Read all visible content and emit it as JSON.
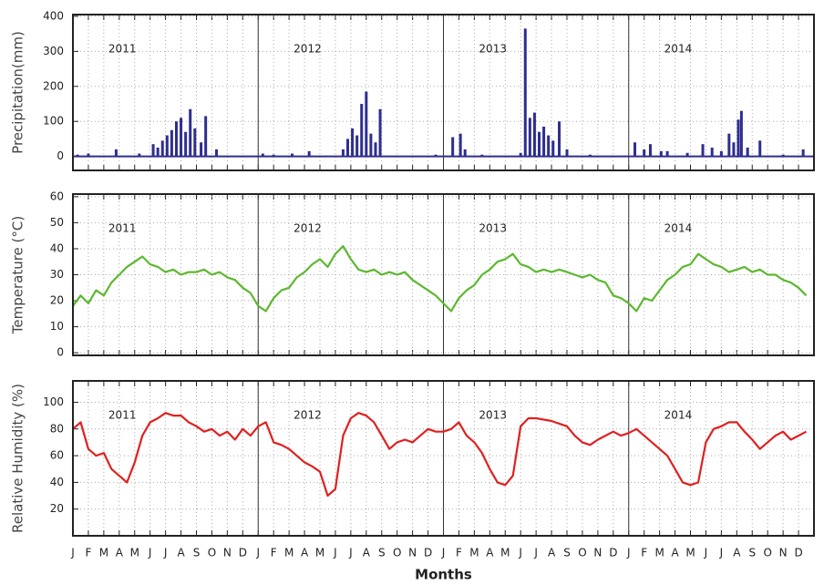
{
  "chart_data": [
    {
      "type": "bar",
      "ylabel": "Precipitation(mm)",
      "color": "#2e2e8f",
      "grid": true,
      "xlim": [
        0,
        48
      ],
      "ylim": [
        -40,
        405
      ],
      "yticks": [
        0,
        100,
        200,
        300,
        400
      ],
      "annotations": [
        "2011",
        "2012",
        "2013",
        "2014"
      ],
      "x": [
        0.3,
        1,
        2.8,
        4.3,
        5.2,
        5.5,
        5.8,
        6.1,
        6.4,
        6.7,
        7,
        7.3,
        7.6,
        7.9,
        8.3,
        8.6,
        9.3,
        12.3,
        13,
        14.2,
        15.3,
        17.5,
        17.8,
        18.1,
        18.4,
        18.7,
        19,
        19.3,
        19.6,
        19.9,
        23.5,
        24.6,
        25.1,
        25.4,
        26.5,
        29,
        29.3,
        29.6,
        29.9,
        30.2,
        30.5,
        30.8,
        31.1,
        31.5,
        32,
        33.5,
        36.4,
        37,
        37.4,
        38.1,
        38.5,
        39.8,
        40.8,
        41.4,
        42,
        42.5,
        42.8,
        43.1,
        43.3,
        43.7,
        44.5,
        46,
        47.3
      ],
      "values": [
        5,
        8,
        20,
        8,
        35,
        25,
        45,
        60,
        75,
        100,
        110,
        70,
        135,
        80,
        40,
        115,
        20,
        8,
        5,
        8,
        15,
        20,
        50,
        80,
        60,
        150,
        185,
        65,
        40,
        135,
        5,
        55,
        65,
        20,
        5,
        10,
        365,
        110,
        125,
        70,
        85,
        60,
        45,
        100,
        20,
        5,
        40,
        20,
        35,
        15,
        15,
        10,
        35,
        25,
        15,
        65,
        40,
        105,
        130,
        25,
        45,
        5,
        20
      ]
    },
    {
      "type": "line",
      "ylabel": "Temperature (°C)",
      "color": "#5db82f",
      "grid": true,
      "xlim": [
        0,
        48
      ],
      "ylim": [
        -1,
        61
      ],
      "yticks": [
        0,
        10,
        20,
        30,
        40,
        50,
        60
      ],
      "annotations": [
        "2011",
        "2012",
        "2013",
        "2014"
      ],
      "x": [
        0,
        0.5,
        1,
        1.5,
        2,
        2.5,
        3,
        3.5,
        4,
        4.5,
        5,
        5.5,
        6,
        6.5,
        7,
        7.5,
        8,
        8.5,
        9,
        9.5,
        10,
        10.5,
        11,
        11.5,
        12,
        12.5,
        13,
        13.5,
        14,
        14.5,
        15,
        15.5,
        16,
        16.5,
        17,
        17.5,
        18,
        18.5,
        19,
        19.5,
        20,
        20.5,
        21,
        21.5,
        22,
        22.5,
        23,
        23.5,
        24,
        24.5,
        25,
        25.5,
        26,
        26.5,
        27,
        27.5,
        28,
        28.5,
        29,
        29.5,
        30,
        30.5,
        31,
        31.5,
        32,
        32.5,
        33,
        33.5,
        34,
        34.5,
        35,
        35.5,
        36,
        36.5,
        37,
        37.5,
        38,
        38.5,
        39,
        39.5,
        40,
        40.5,
        41,
        41.5,
        42,
        42.5,
        43,
        43.5,
        44,
        44.5,
        45,
        45.5,
        46,
        46.5,
        47,
        47.5
      ],
      "values": [
        18,
        22,
        19,
        24,
        22,
        27,
        30,
        33,
        35,
        37,
        34,
        33,
        31,
        32,
        30,
        31,
        31,
        32,
        30,
        31,
        29,
        28,
        25,
        23,
        18,
        16,
        21,
        24,
        25,
        29,
        31,
        34,
        36,
        33,
        38,
        41,
        36,
        32,
        31,
        32,
        30,
        31,
        30,
        31,
        28,
        26,
        24,
        22,
        19,
        16,
        21,
        24,
        26,
        30,
        32,
        35,
        36,
        38,
        34,
        33,
        31,
        32,
        31,
        32,
        31,
        30,
        29,
        30,
        28,
        27,
        22,
        21,
        19,
        16,
        21,
        20,
        24,
        28,
        30,
        33,
        34,
        38,
        36,
        34,
        33,
        31,
        32,
        33,
        31,
        32,
        30,
        30,
        28,
        27,
        25,
        22
      ]
    },
    {
      "type": "line",
      "ylabel": "Relative Humidity (%)",
      "xlabel": "Months",
      "color": "#e02020",
      "grid": true,
      "xlim": [
        0,
        48
      ],
      "ylim": [
        0,
        116
      ],
      "yticks": [
        20,
        40,
        60,
        80,
        100
      ],
      "annotations": [
        "2011",
        "2012",
        "2013",
        "2014"
      ],
      "xticks": [
        {
          "value": 0,
          "label": "J"
        },
        {
          "value": 1,
          "label": "F"
        },
        {
          "value": 2,
          "label": "M"
        },
        {
          "value": 3,
          "label": "A"
        },
        {
          "value": 4,
          "label": "M"
        },
        {
          "value": 5,
          "label": "J"
        },
        {
          "value": 6,
          "label": "J"
        },
        {
          "value": 7,
          "label": "A"
        },
        {
          "value": 8,
          "label": "S"
        },
        {
          "value": 9,
          "label": "O"
        },
        {
          "value": 10,
          "label": "N"
        },
        {
          "value": 11,
          "label": "D"
        },
        {
          "value": 12,
          "label": "J"
        },
        {
          "value": 13,
          "label": "F"
        },
        {
          "value": 14,
          "label": "M"
        },
        {
          "value": 15,
          "label": "A"
        },
        {
          "value": 16,
          "label": "M"
        },
        {
          "value": 17,
          "label": "J"
        },
        {
          "value": 18,
          "label": "J"
        },
        {
          "value": 19,
          "label": "A"
        },
        {
          "value": 20,
          "label": "S"
        },
        {
          "value": 21,
          "label": "O"
        },
        {
          "value": 22,
          "label": "N"
        },
        {
          "value": 23,
          "label": "D"
        },
        {
          "value": 24,
          "label": "J"
        },
        {
          "value": 25,
          "label": "F"
        },
        {
          "value": 26,
          "label": "M"
        },
        {
          "value": 27,
          "label": "A"
        },
        {
          "value": 28,
          "label": "M"
        },
        {
          "value": 29,
          "label": "J"
        },
        {
          "value": 30,
          "label": "J"
        },
        {
          "value": 31,
          "label": "A"
        },
        {
          "value": 32,
          "label": "S"
        },
        {
          "value": 33,
          "label": "O"
        },
        {
          "value": 34,
          "label": "N"
        },
        {
          "value": 35,
          "label": "D"
        },
        {
          "value": 36,
          "label": "J"
        },
        {
          "value": 37,
          "label": "F"
        },
        {
          "value": 38,
          "label": "M"
        },
        {
          "value": 39,
          "label": "A"
        },
        {
          "value": 40,
          "label": "M"
        },
        {
          "value": 41,
          "label": "J"
        },
        {
          "value": 42,
          "label": "J"
        },
        {
          "value": 43,
          "label": "A"
        },
        {
          "value": 44,
          "label": "S"
        },
        {
          "value": 45,
          "label": "O"
        },
        {
          "value": 46,
          "label": "N"
        },
        {
          "value": 47,
          "label": "D"
        }
      ],
      "x": [
        0,
        0.5,
        1,
        1.5,
        2,
        2.5,
        3,
        3.5,
        4,
        4.5,
        5,
        5.5,
        6,
        6.5,
        7,
        7.5,
        8,
        8.5,
        9,
        9.5,
        10,
        10.5,
        11,
        11.5,
        12,
        12.5,
        13,
        13.5,
        14,
        14.5,
        15,
        15.5,
        16,
        16.5,
        17,
        17.5,
        18,
        18.5,
        19,
        19.5,
        20,
        20.5,
        21,
        21.5,
        22,
        22.5,
        23,
        23.5,
        24,
        24.5,
        25,
        25.5,
        26,
        26.5,
        27,
        27.5,
        28,
        28.5,
        29,
        29.5,
        30,
        30.5,
        31,
        31.5,
        32,
        32.5,
        33,
        33.5,
        34,
        34.5,
        35,
        35.5,
        36,
        36.5,
        37,
        37.5,
        38,
        38.5,
        39,
        39.5,
        40,
        40.5,
        41,
        41.5,
        42,
        42.5,
        43,
        43.5,
        44,
        44.5,
        45,
        45.5,
        46,
        46.5,
        47,
        47.5
      ],
      "values": [
        80,
        85,
        65,
        60,
        62,
        50,
        45,
        40,
        55,
        75,
        85,
        88,
        92,
        90,
        90,
        85,
        82,
        78,
        80,
        75,
        78,
        72,
        80,
        75,
        82,
        85,
        70,
        68,
        65,
        60,
        55,
        52,
        48,
        30,
        35,
        75,
        88,
        92,
        90,
        85,
        75,
        65,
        70,
        72,
        70,
        75,
        80,
        78,
        78,
        80,
        85,
        75,
        70,
        62,
        50,
        40,
        38,
        45,
        82,
        88,
        88,
        87,
        86,
        84,
        82,
        75,
        70,
        68,
        72,
        75,
        78,
        75,
        77,
        80,
        75,
        70,
        65,
        60,
        50,
        40,
        38,
        40,
        70,
        80,
        82,
        85,
        85,
        78,
        72,
        65,
        70,
        75,
        78,
        72,
        75,
        78
      ]
    }
  ]
}
